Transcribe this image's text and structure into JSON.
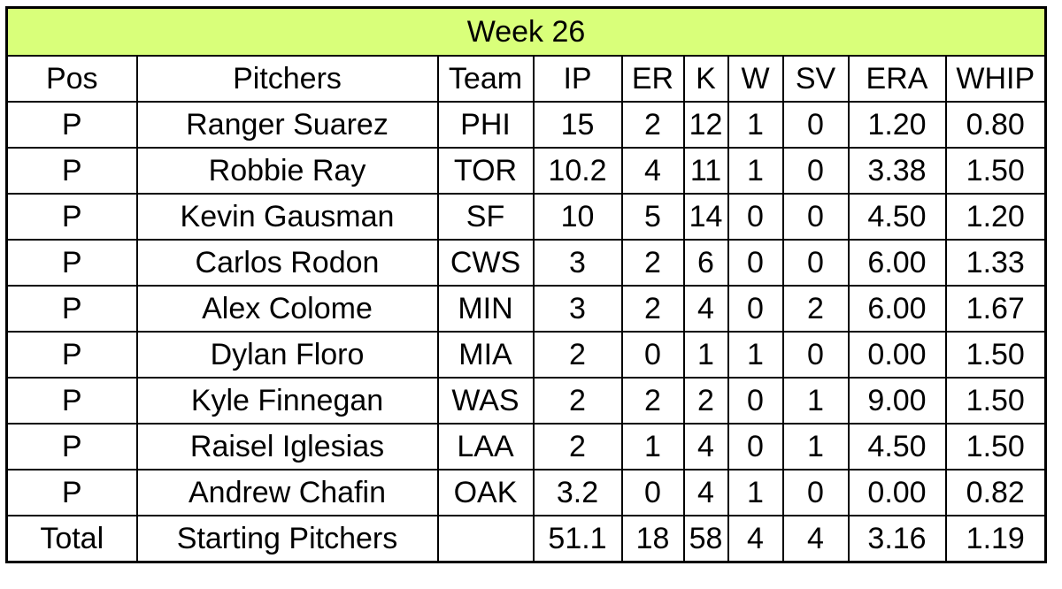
{
  "title": "Week 26",
  "columns": [
    "Pos",
    "Pitchers",
    "Team",
    "IP",
    "ER",
    "K",
    "W",
    "SV",
    "ERA",
    "WHIP"
  ],
  "rows": [
    [
      "P",
      "Ranger Suarez",
      "PHI",
      "15",
      "2",
      "12",
      "1",
      "0",
      "1.20",
      "0.80"
    ],
    [
      "P",
      "Robbie Ray",
      "TOR",
      "10.2",
      "4",
      "11",
      "1",
      "0",
      "3.38",
      "1.50"
    ],
    [
      "P",
      "Kevin Gausman",
      "SF",
      "10",
      "5",
      "14",
      "0",
      "0",
      "4.50",
      "1.20"
    ],
    [
      "P",
      "Carlos Rodon",
      "CWS",
      "3",
      "2",
      "6",
      "0",
      "0",
      "6.00",
      "1.33"
    ],
    [
      "P",
      "Alex Colome",
      "MIN",
      "3",
      "2",
      "4",
      "0",
      "2",
      "6.00",
      "1.67"
    ],
    [
      "P",
      "Dylan Floro",
      "MIA",
      "2",
      "0",
      "1",
      "1",
      "0",
      "0.00",
      "1.50"
    ],
    [
      "P",
      "Kyle Finnegan",
      "WAS",
      "2",
      "2",
      "2",
      "0",
      "1",
      "9.00",
      "1.50"
    ],
    [
      "P",
      "Raisel Iglesias",
      "LAA",
      "2",
      "1",
      "4",
      "0",
      "1",
      "4.50",
      "1.50"
    ],
    [
      "P",
      "Andrew Chafin",
      "OAK",
      "3.2",
      "0",
      "4",
      "1",
      "0",
      "0.00",
      "0.82"
    ]
  ],
  "total": [
    "Total",
    "Starting Pitchers",
    "",
    "51.1",
    "18",
    "58",
    "4",
    "4",
    "3.16",
    "1.19"
  ],
  "colors": {
    "title_bg": "#d9ff7a",
    "border": "#000000"
  }
}
